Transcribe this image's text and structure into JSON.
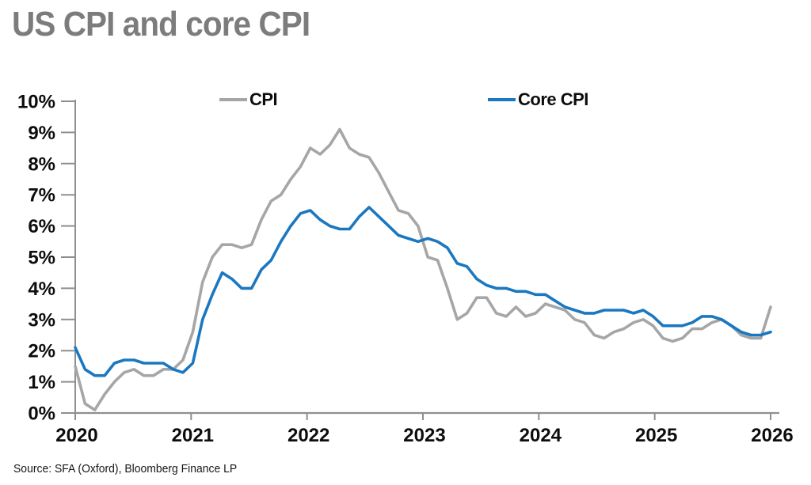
{
  "page": {
    "source": "Source: SFA (Oxford), Bloomberg Finance LP"
  },
  "chart_data": {
    "type": "line",
    "title": "US CPI and core CPI",
    "xlabel": "",
    "ylabel": "",
    "x_tick_labels": [
      "2020",
      "2021",
      "2022",
      "2023",
      "2024",
      "2025",
      "2026"
    ],
    "y_tick_labels": [
      "0%",
      "1%",
      "2%",
      "3%",
      "4%",
      "5%",
      "6%",
      "7%",
      "8%",
      "9%",
      "10%"
    ],
    "ylim": [
      0,
      10
    ],
    "grid": false,
    "legend_position": "top",
    "axis_color": "#8f8f8f",
    "tick_label_color": "#0d0d0d",
    "title_color": "#7c7c7c",
    "points_per_year": 12,
    "series": [
      {
        "name": "CPI",
        "color": "#a6a6a6",
        "values": [
          1.5,
          0.3,
          0.1,
          0.6,
          1.0,
          1.3,
          1.4,
          1.2,
          1.2,
          1.4,
          1.4,
          1.7,
          2.6,
          4.2,
          5.0,
          5.4,
          5.4,
          5.3,
          5.4,
          6.2,
          6.8,
          7.0,
          7.5,
          7.9,
          8.5,
          8.3,
          8.6,
          9.1,
          8.5,
          8.3,
          8.2,
          7.7,
          7.1,
          6.5,
          6.4,
          6.0,
          5.0,
          4.9,
          4.0,
          3.0,
          3.2,
          3.7,
          3.7,
          3.2,
          3.1,
          3.4,
          3.1,
          3.2,
          3.5,
          3.4,
          3.3,
          3.0,
          2.9,
          2.5,
          2.4,
          2.6,
          2.7,
          2.9,
          3.0,
          2.8,
          2.4,
          2.3,
          2.4,
          2.7,
          2.7,
          2.9,
          3.0,
          2.8,
          2.5,
          2.4,
          2.4,
          3.4
        ]
      },
      {
        "name": "Core CPI",
        "color": "#1b78c0",
        "values": [
          2.1,
          1.4,
          1.2,
          1.2,
          1.6,
          1.7,
          1.7,
          1.6,
          1.6,
          1.6,
          1.4,
          1.3,
          1.6,
          3.0,
          3.8,
          4.5,
          4.3,
          4.0,
          4.0,
          4.6,
          4.9,
          5.5,
          6.0,
          6.4,
          6.5,
          6.2,
          6.0,
          5.9,
          5.9,
          6.3,
          6.6,
          6.3,
          6.0,
          5.7,
          5.6,
          5.5,
          5.6,
          5.5,
          5.3,
          4.8,
          4.7,
          4.3,
          4.1,
          4.0,
          4.0,
          3.9,
          3.9,
          3.8,
          3.8,
          3.6,
          3.4,
          3.3,
          3.2,
          3.2,
          3.3,
          3.3,
          3.3,
          3.2,
          3.3,
          3.1,
          2.8,
          2.8,
          2.8,
          2.9,
          3.1,
          3.1,
          3.0,
          2.8,
          2.6,
          2.5,
          2.5,
          2.6
        ]
      }
    ]
  }
}
